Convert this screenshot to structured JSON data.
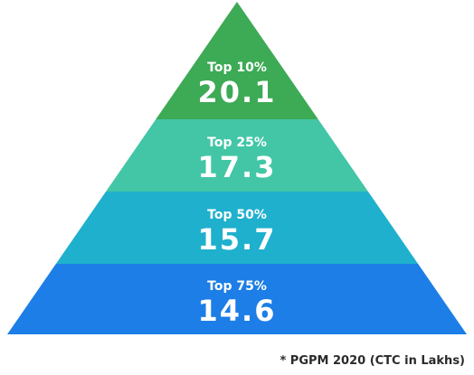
{
  "chart_data": {
    "type": "pyramid",
    "unit": "CTC in Lakhs",
    "tiers": [
      {
        "label": "Top 10%",
        "value": "20.1",
        "color": "#3daa55"
      },
      {
        "label": "Top 25%",
        "value": "17.3",
        "color": "#42c6a6"
      },
      {
        "label": "Top 50%",
        "value": "15.7",
        "color": "#1fb0cd"
      },
      {
        "label": "Top 75%",
        "value": "14.6",
        "color": "#1c7ee6"
      }
    ]
  },
  "footnote": "* PGPM 2020 (CTC in Lakhs)"
}
